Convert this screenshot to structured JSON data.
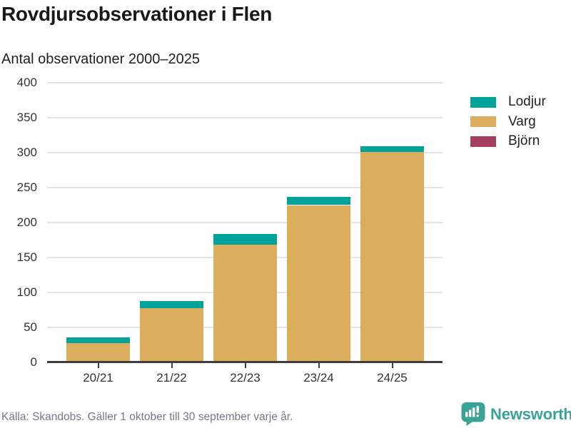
{
  "header": {
    "title": "Rovdjursobservationer i Flen",
    "subtitle": "Antal observationer 2000–2025"
  },
  "chart_data": {
    "type": "bar",
    "stacked": true,
    "title": "Rovdjursobservationer i Flen",
    "subtitle": "Antal observationer 2000–2025",
    "categories": [
      "20/21",
      "21/22",
      "22/23",
      "23/24",
      "24/25"
    ],
    "series": [
      {
        "name": "Lodjur",
        "color": "#00a39a",
        "values": [
          8,
          10,
          16,
          12,
          8
        ]
      },
      {
        "name": "Varg",
        "color": "#dbad5c",
        "values": [
          28,
          78,
          168,
          225,
          301
        ]
      },
      {
        "name": "Björn",
        "color": "#a43f60",
        "values": [
          0,
          0,
          0,
          0,
          0
        ]
      }
    ],
    "stack_totals": [
      36,
      88,
      184,
      237,
      309
    ],
    "xlabel": "",
    "ylabel": "",
    "ylim": [
      0,
      400
    ],
    "yticks": [
      0,
      50,
      100,
      150,
      200,
      250,
      300,
      350,
      400
    ],
    "grid": true,
    "legend_position": "right"
  },
  "footer": {
    "source": "Källa: Skandobs. Gäller 1 oktober till 30 september varje år.",
    "brand": "Newsworthy"
  },
  "colors": {
    "lodjur": "#00a39a",
    "varg": "#dbad5c",
    "bjorn": "#a43f60",
    "grid": "#e4e4e4",
    "axis": "#3e3e3e",
    "brand_teal": "#3ba297",
    "footer_text": "#6f7a85"
  }
}
